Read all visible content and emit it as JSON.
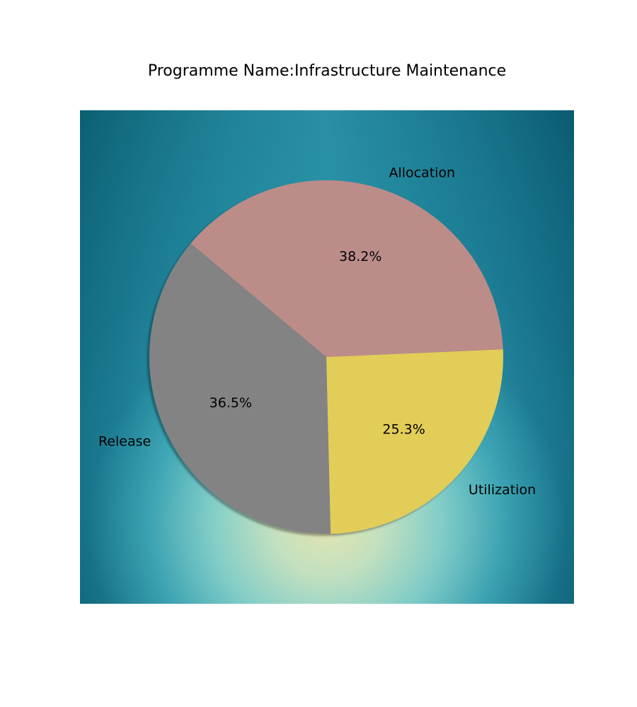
{
  "chart_data": {
    "type": "pie",
    "title": "Programme Name:Infrastructure Maintenance",
    "categories": [
      "Allocation",
      "Utilization",
      "Release"
    ],
    "values": [
      38.2,
      25.3,
      36.5
    ],
    "value_labels": [
      "38.2%",
      "25.3%",
      "36.5%"
    ],
    "colors": [
      "#bc8c89",
      "#e2cd58",
      "#838383"
    ],
    "start_angle_deg": 140,
    "direction": "clockwise",
    "shadow": true,
    "legend": "none"
  }
}
